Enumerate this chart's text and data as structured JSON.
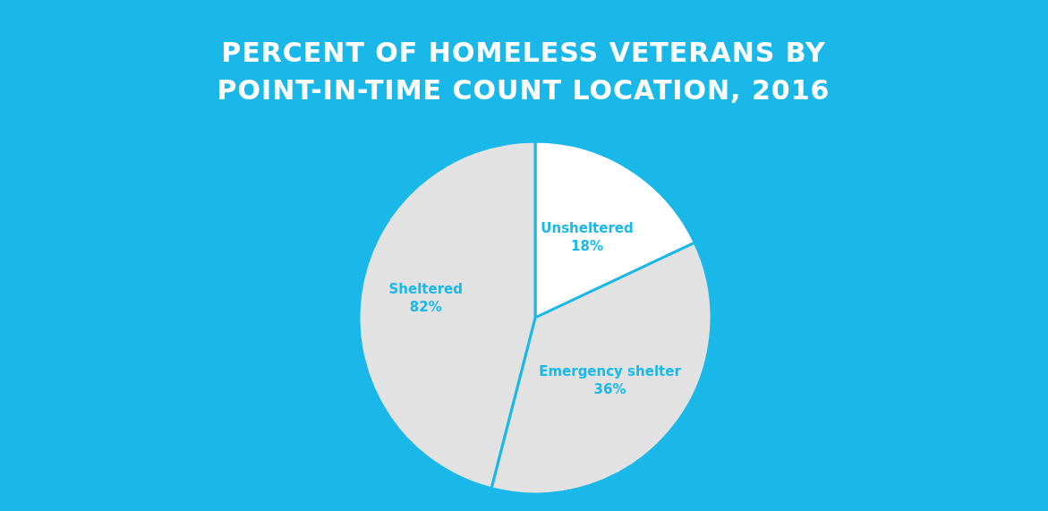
{
  "chart_data": {
    "type": "pie",
    "title": "PERCENT OF HOMELESS VETERANS BY POINT-IN-TIME COUNT LOCATION, 2016",
    "categories": [
      "Unsheltered",
      "Emergency shelter",
      null
    ],
    "values": [
      18,
      36,
      46
    ],
    "colors": [
      "#ffffff",
      "#e2e2e2",
      "#e2e2e2"
    ],
    "value_labels": [
      "18%",
      "36%",
      null
    ],
    "annotations": [
      "Sheltered 82%"
    ],
    "legend": false
  }
}
